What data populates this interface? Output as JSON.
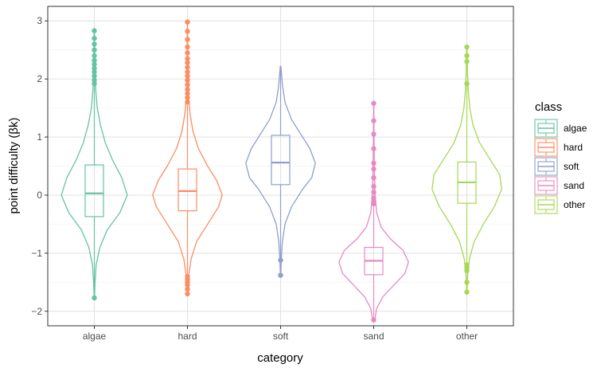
{
  "chart_data": {
    "type": "violin",
    "xlabel": "category",
    "ylabel": "point difficulty (βk)",
    "ylim": [
      -2.25,
      3.25
    ],
    "yticks": [
      "−2",
      "−1",
      "0",
      "1",
      "2",
      "3"
    ],
    "ytick_values": [
      -2,
      -1,
      0,
      1,
      2,
      3
    ],
    "categories": [
      "algae",
      "hard",
      "soft",
      "sand",
      "other"
    ],
    "grid": true,
    "legend": {
      "title": "class",
      "placement": "right",
      "entries": [
        "algae",
        "hard",
        "soft",
        "sand",
        "other"
      ]
    },
    "series": [
      {
        "name": "algae",
        "color": "#66c2a5",
        "box": {
          "lower_whisker": -1.73,
          "q1": -0.37,
          "median": 0.03,
          "q3": 0.52,
          "upper_whisker": 1.88
        },
        "violin": {
          "min": -1.77,
          "max": 2.83,
          "profile": [
            [
              -1.77,
              0.005
            ],
            [
              -1.5,
              0.02
            ],
            [
              -1.2,
              0.05
            ],
            [
              -0.9,
              0.15
            ],
            [
              -0.6,
              0.35
            ],
            [
              -0.3,
              0.7
            ],
            [
              0,
              0.9
            ],
            [
              0.3,
              0.75
            ],
            [
              0.6,
              0.5
            ],
            [
              0.9,
              0.3
            ],
            [
              1.2,
              0.17
            ],
            [
              1.5,
              0.08
            ],
            [
              1.8,
              0.04
            ],
            [
              2.1,
              0.02
            ],
            [
              2.5,
              0.01
            ],
            [
              2.83,
              0.004
            ]
          ]
        },
        "outliers": [
          -1.77,
          1.92,
          1.98,
          2.05,
          2.12,
          2.18,
          2.25,
          2.32,
          2.4,
          2.5,
          2.6,
          2.7,
          2.83
        ]
      },
      {
        "name": "hard",
        "color": "#fc8d62",
        "box": {
          "lower_whisker": -1.35,
          "q1": -0.27,
          "median": 0.07,
          "q3": 0.45,
          "upper_whisker": 1.55
        },
        "violin": {
          "min": -1.7,
          "max": 2.98,
          "profile": [
            [
              -1.7,
              0.005
            ],
            [
              -1.4,
              0.03
            ],
            [
              -1.1,
              0.1
            ],
            [
              -0.8,
              0.25
            ],
            [
              -0.5,
              0.55
            ],
            [
              -0.2,
              0.85
            ],
            [
              0,
              0.95
            ],
            [
              0.25,
              0.8
            ],
            [
              0.5,
              0.55
            ],
            [
              0.8,
              0.3
            ],
            [
              1.1,
              0.15
            ],
            [
              1.4,
              0.07
            ],
            [
              1.7,
              0.03
            ],
            [
              2.1,
              0.015
            ],
            [
              2.5,
              0.008
            ],
            [
              2.98,
              0.003
            ]
          ]
        },
        "outliers": [
          -1.7,
          -1.62,
          -1.55,
          -1.5,
          -1.45,
          -1.4,
          1.6,
          1.68,
          1.75,
          1.82,
          1.9,
          1.98,
          2.05,
          2.12,
          2.2,
          2.28,
          2.35,
          2.45,
          2.55,
          2.68,
          2.82,
          2.98
        ]
      },
      {
        "name": "soft",
        "color": "#8da0cb",
        "box": {
          "lower_whisker": -1.1,
          "q1": 0.18,
          "median": 0.56,
          "q3": 1.03,
          "upper_whisker": 2.2
        },
        "violin": {
          "min": -1.38,
          "max": 2.22,
          "profile": [
            [
              -1.38,
              0.005
            ],
            [
              -1.1,
              0.02
            ],
            [
              -0.8,
              0.05
            ],
            [
              -0.5,
              0.12
            ],
            [
              -0.2,
              0.3
            ],
            [
              0.1,
              0.6
            ],
            [
              0.3,
              0.85
            ],
            [
              0.55,
              0.95
            ],
            [
              0.8,
              0.8
            ],
            [
              1.05,
              0.55
            ],
            [
              1.3,
              0.3
            ],
            [
              1.6,
              0.12
            ],
            [
              1.9,
              0.05
            ],
            [
              2.22,
              0.008
            ]
          ]
        },
        "outliers": [
          -1.12,
          -1.38
        ]
      },
      {
        "name": "sand",
        "color": "#e78ac3",
        "box": {
          "lower_whisker": -2.12,
          "q1": -1.37,
          "median": -1.13,
          "q3": -0.9,
          "upper_whisker": -0.2
        },
        "violin": {
          "min": -2.15,
          "max": 1.58,
          "profile": [
            [
              -2.15,
              0.03
            ],
            [
              -1.95,
              0.08
            ],
            [
              -1.75,
              0.25
            ],
            [
              -1.55,
              0.55
            ],
            [
              -1.35,
              0.85
            ],
            [
              -1.15,
              0.95
            ],
            [
              -0.95,
              0.8
            ],
            [
              -0.75,
              0.45
            ],
            [
              -0.55,
              0.2
            ],
            [
              -0.3,
              0.08
            ],
            [
              0,
              0.04
            ],
            [
              0.4,
              0.02
            ],
            [
              0.9,
              0.01
            ],
            [
              1.58,
              0.004
            ]
          ]
        },
        "outliers": [
          -2.15,
          -0.15,
          -0.1,
          -0.05,
          0.05,
          0.15,
          0.3,
          0.45,
          0.55,
          0.8,
          1.05,
          1.28,
          1.58
        ]
      },
      {
        "name": "other",
        "color": "#a6d854",
        "box": {
          "lower_whisker": -1.15,
          "q1": -0.14,
          "median": 0.22,
          "q3": 0.57,
          "upper_whisker": 1.88
        },
        "violin": {
          "min": -1.67,
          "max": 2.55,
          "profile": [
            [
              -1.67,
              0.005
            ],
            [
              -1.4,
              0.02
            ],
            [
              -1.1,
              0.07
            ],
            [
              -0.8,
              0.2
            ],
            [
              -0.5,
              0.45
            ],
            [
              -0.2,
              0.75
            ],
            [
              0.1,
              0.95
            ],
            [
              0.35,
              0.9
            ],
            [
              0.6,
              0.65
            ],
            [
              0.9,
              0.35
            ],
            [
              1.2,
              0.17
            ],
            [
              1.5,
              0.08
            ],
            [
              1.8,
              0.04
            ],
            [
              2.1,
              0.02
            ],
            [
              2.55,
              0.005
            ]
          ]
        },
        "outliers": [
          -1.2,
          -1.25,
          -1.3,
          -1.5,
          -1.67,
          1.92,
          2.3,
          2.4,
          2.55
        ]
      }
    ]
  }
}
